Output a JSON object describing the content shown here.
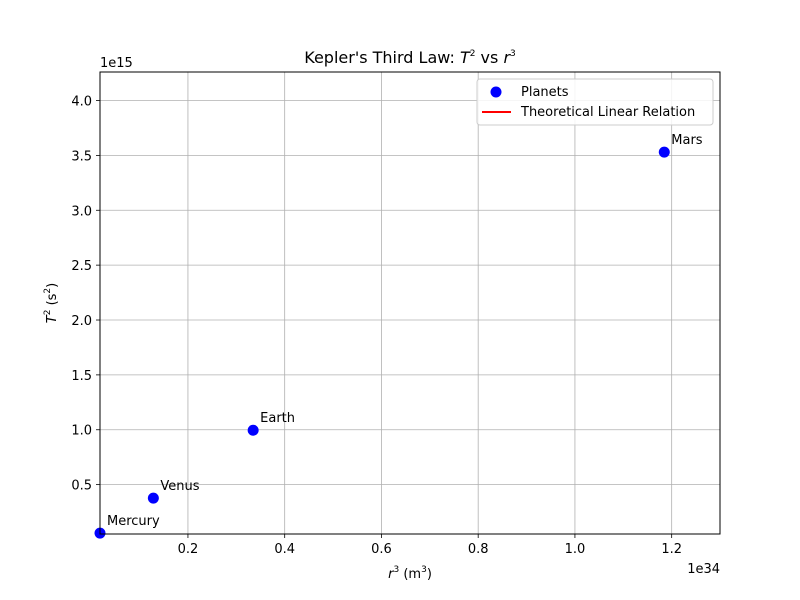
{
  "chart_data": {
    "type": "scatter",
    "title": "Kepler's Third Law: T² vs r³",
    "title_parts": {
      "prefix": "Kepler's Third Law: ",
      "t": "T",
      "t_exp": "2",
      "mid": " vs ",
      "r": "r",
      "r_exp": "3"
    },
    "xlabel": "r³ (m³)",
    "xlabel_parts": {
      "var": "r",
      "var_exp": "3",
      "unit_open": " (m",
      "unit_exp": "3",
      "unit_close": ")"
    },
    "ylabel": "T² (s²)",
    "ylabel_parts": {
      "var": "T",
      "var_exp": "2",
      "unit_open": " (s",
      "unit_exp": "2",
      "unit_close": ")"
    },
    "x_offset_text": "1e34",
    "y_offset_text": "1e15",
    "xlim": [
      0.0182,
      1.2999
    ],
    "ylim": [
      0.05,
      4.26
    ],
    "x_scale_exponent": 34,
    "y_scale_exponent": 15,
    "xticks": [
      0.2,
      0.4,
      0.6,
      0.8,
      1.0,
      1.2
    ],
    "xtick_labels": [
      "0.2",
      "0.4",
      "0.6",
      "0.8",
      "1.0",
      "1.2"
    ],
    "yticks": [
      0.5,
      1.0,
      1.5,
      2.0,
      2.5,
      3.0,
      3.5,
      4.0
    ],
    "ytick_labels": [
      "0.5",
      "1.0",
      "1.5",
      "2.0",
      "2.5",
      "3.0",
      "3.5",
      "4.0"
    ],
    "grid": true,
    "legend_position": "top-right",
    "series": [
      {
        "name": "Planets",
        "kind": "scatter",
        "color": "#0000ff",
        "points": [
          {
            "label": "Mercury",
            "x": 0.0182,
            "y": 0.0576
          },
          {
            "label": "Venus",
            "x": 0.1285,
            "y": 0.3769
          },
          {
            "label": "Earth",
            "x": 0.3348,
            "y": 0.9958
          },
          {
            "label": "Mars",
            "x": 1.1847,
            "y": 3.5302
          }
        ]
      },
      {
        "name": "Theoretical Linear Relation",
        "kind": "line",
        "color": "#ff0000",
        "points": []
      }
    ]
  }
}
